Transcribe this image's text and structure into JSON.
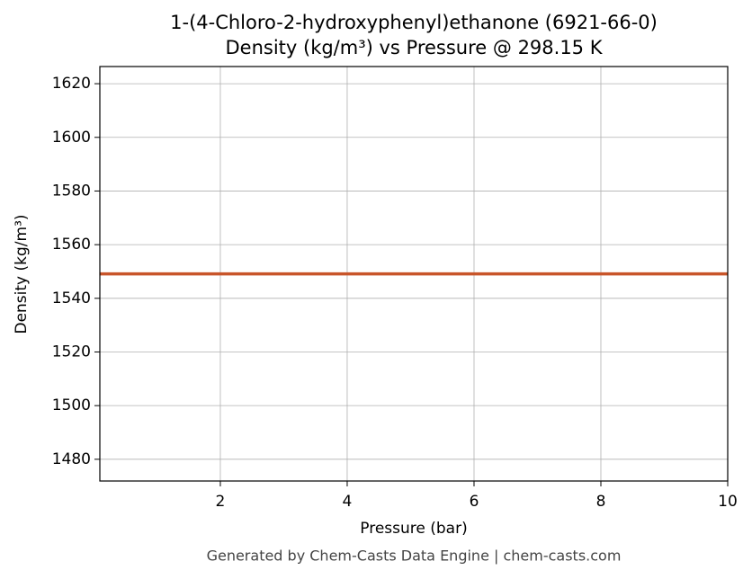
{
  "chart_data": {
    "type": "line",
    "title": "1-(4-Chloro-2-hydroxyphenyl)ethanone (6921-66-0)",
    "subtitle": "Density (kg/m³) vs Pressure @ 298.15 K",
    "x_label": "Pressure (bar)",
    "y_label": "Density (kg/m³)",
    "x": [
      0.1,
      10
    ],
    "series": [
      {
        "name": "Density",
        "color": "#c8552a",
        "values": [
          1549.1,
          1549.1
        ]
      }
    ],
    "xlim": [
      0.1,
      10
    ],
    "xticks": [
      2,
      4,
      6,
      8,
      10
    ],
    "ylim": [
      1471.9,
      1626.4
    ],
    "yticks": [
      1480,
      1500,
      1520,
      1540,
      1560,
      1580,
      1600,
      1620
    ],
    "grid": true,
    "footer": "Generated by Chem-Casts Data Engine | chem-casts.com"
  }
}
